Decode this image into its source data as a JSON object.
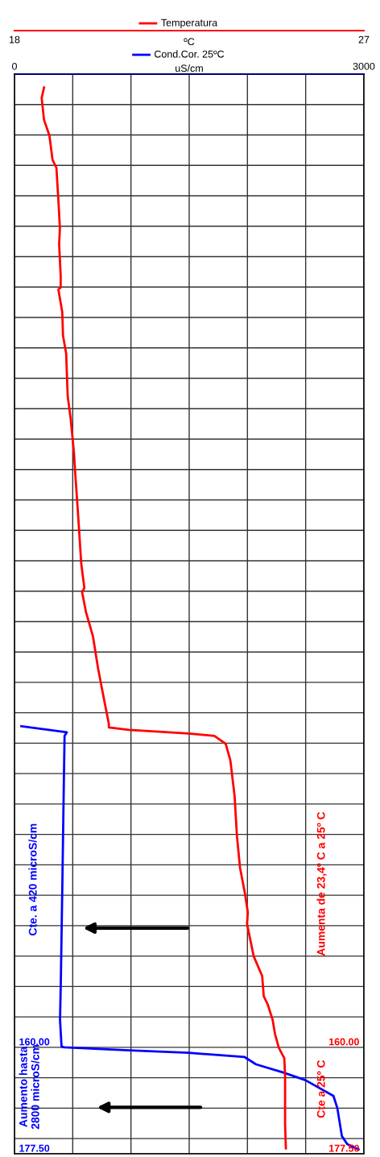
{
  "chart_data": {
    "type": "line",
    "orientation": "horizontal",
    "xlabel": "uS/cm",
    "x2label": "ºC",
    "xlim": [
      0,
      3000
    ],
    "xticks": [
      0,
      {
        "value": 500,
        "label": null
      },
      {
        "value": 1000,
        "label": null
      },
      {
        "value": 1500,
        "label": null
      },
      {
        "value": 2000,
        "label": null
      },
      {
        "value": 2500,
        "label": null
      },
      3000
    ],
    "x2lim": [
      18,
      27
    ],
    "x2ticks": [
      18,
      27
    ],
    "ylim": [
      177.5,
      0
    ],
    "yticks": [
      {
        "value": 5,
        "label": null
      },
      {
        "value": 10,
        "label": null
      },
      {
        "value": 15,
        "label": null
      },
      {
        "value": 20,
        "label": null
      },
      {
        "value": 25,
        "label": null
      },
      {
        "value": 30,
        "label": null
      },
      {
        "value": 35,
        "label": null
      },
      {
        "value": 40,
        "label": null
      },
      {
        "value": 45,
        "label": null
      },
      {
        "value": 50,
        "label": null
      },
      {
        "value": 55,
        "label": null
      },
      {
        "value": 60,
        "label": null
      },
      {
        "value": 65,
        "label": null
      },
      {
        "value": 70,
        "label": null
      },
      {
        "value": 75,
        "label": null
      },
      {
        "value": 80,
        "label": null
      },
      {
        "value": 85,
        "label": null
      },
      {
        "value": 90,
        "label": null
      },
      {
        "value": 95,
        "label": null
      },
      {
        "value": 100,
        "label": null
      },
      {
        "value": 105,
        "label": null
      },
      {
        "value": 110,
        "label": null
      },
      {
        "value": 115,
        "label": null
      },
      {
        "value": 120,
        "label": null
      },
      {
        "value": 125,
        "label": null
      },
      {
        "value": 130,
        "label": null
      },
      {
        "value": 135,
        "label": null
      },
      {
        "value": 140,
        "label": null
      },
      {
        "value": 145,
        "label": null
      },
      {
        "value": 150,
        "label": null
      },
      {
        "value": 155,
        "label": null
      },
      {
        "value": 160,
        "label": "160.00"
      },
      {
        "value": 165,
        "label": null
      },
      {
        "value": 170,
        "label": null
      },
      {
        "value": 175,
        "label": null
      },
      {
        "value": 177.5,
        "label": "177.50"
      }
    ],
    "y2lim": [
      177.5,
      0
    ],
    "y2ticks": [
      {
        "value": 160,
        "label": "160.00"
      },
      {
        "value": 177.5,
        "label": "177.50"
      }
    ],
    "grid": true,
    "legend": "top",
    "series": [
      {
        "name": "Temperatura",
        "color": "#ff0000",
        "axis": "x2",
        "x": [
          2.2,
          3.9,
          7.5,
          10.1,
          14.1,
          15.4,
          20.7,
          25.3,
          27.9,
          33.2,
          35.1,
          35.4,
          39.1,
          43.0,
          45.9,
          52.9,
          56.8,
          62.1,
          66.1,
          72.6,
          80.5,
          84.5,
          85.1,
          88.4,
          92.4,
          97.6,
          101.6,
          104.2,
          106.8,
          107.4,
          107.8,
          108.4,
          108.8,
          110.1,
          112.8,
          118.7,
          125.3,
          130.5,
          134.5,
          137.8,
          139.7,
          145.0,
          148.3,
          151.6,
          152.9,
          155.5,
          157.8,
          160.1,
          161.8,
          164.7,
          172.6,
          176.6
        ],
        "values": [
          18.76,
          18.7,
          18.76,
          18.9,
          18.98,
          19.08,
          19.13,
          19.17,
          19.15,
          19.19,
          19.19,
          19.13,
          19.23,
          19.25,
          19.33,
          19.37,
          19.45,
          19.53,
          19.57,
          19.64,
          19.72,
          19.8,
          19.74,
          19.84,
          20.02,
          20.15,
          20.27,
          20.35,
          20.43,
          20.43,
          20.95,
          22.48,
          23.15,
          23.44,
          23.56,
          23.67,
          23.73,
          23.81,
          23.93,
          24.01,
          23.99,
          24.16,
          24.38,
          24.42,
          24.52,
          24.65,
          24.71,
          24.81,
          24.95,
          24.97,
          24.97,
          24.99
        ]
      },
      {
        "name": "Cond.Cor. 25ºC",
        "color": "#0000ff",
        "x": [
          107.2,
          108.2,
          108.8,
          116.1,
          133.2,
          149.0,
          155.5,
          159.9,
          160.0,
          160.5,
          160.9,
          161.6,
          162.8,
          164.1,
          165.4,
          168.0,
          170.0,
          174.6,
          175.9,
          176.8
        ],
        "values": [
          59,
          450,
          430,
          424,
          411,
          398,
          391,
          404,
          430,
          985,
          1493,
          1976,
          2074,
          2302,
          2498,
          2739,
          2772,
          2811,
          2857,
          2954
        ]
      }
    ],
    "annotations": [
      "Cte. a 420 microS/cm",
      "Aumenta de 23,4º C a 25º C",
      "Aumento hasta\n2800 microS/cm",
      "Cte a 25º C"
    ]
  }
}
